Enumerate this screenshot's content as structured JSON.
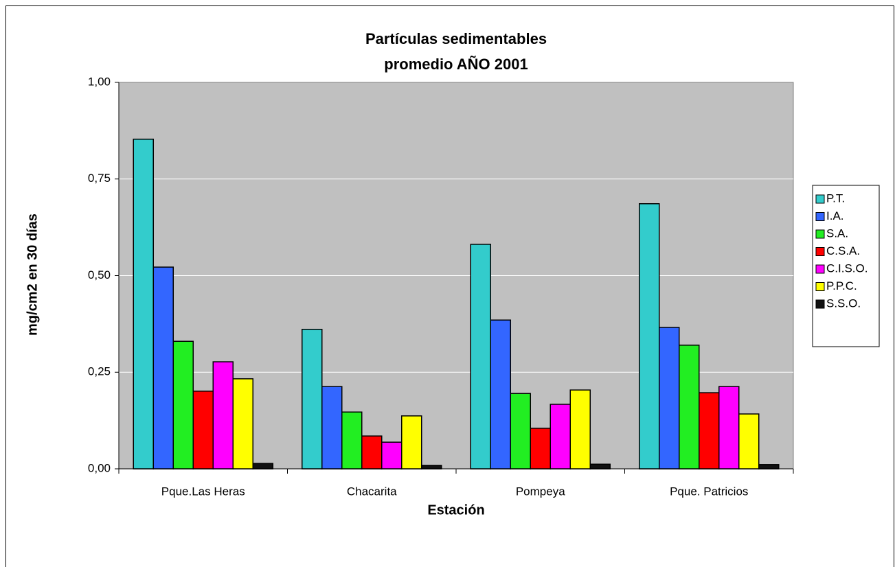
{
  "chart_data": {
    "type": "bar",
    "title": [
      "Partículas sedimentables",
      "promedio  AÑO 2001"
    ],
    "x_label": "Estación",
    "y_label": "mg/cm2 en 30 días",
    "categories": [
      "Pque.Las Heras",
      "Chacarita",
      "Pompeya",
      "Pque. Patricios"
    ],
    "series": [
      {
        "name": "P.T.",
        "color": "#33cccc",
        "values": [
          0.853,
          0.361,
          0.581,
          0.686
        ]
      },
      {
        "name": "I.A.",
        "color": "#3366ff",
        "values": [
          0.522,
          0.213,
          0.385,
          0.366
        ]
      },
      {
        "name": "S.A.",
        "color": "#22ee22",
        "values": [
          0.33,
          0.147,
          0.195,
          0.32
        ]
      },
      {
        "name": "C.S.A.",
        "color": "#ff0000",
        "values": [
          0.201,
          0.085,
          0.105,
          0.197
        ]
      },
      {
        "name": "C.I.S.O.",
        "color": "#ff00ff",
        "values": [
          0.277,
          0.069,
          0.167,
          0.213
        ]
      },
      {
        "name": "P.P.C.",
        "color": "#ffff00",
        "values": [
          0.233,
          0.137,
          0.204,
          0.142
        ]
      },
      {
        "name": "S.S.O.",
        "color": "#111111",
        "values": [
          0.014,
          0.009,
          0.012,
          0.011
        ]
      }
    ],
    "ylim": [
      0,
      1
    ],
    "yticks": [
      {
        "value": 0,
        "label": "0,00"
      },
      {
        "value": 0.25,
        "label": "0,25"
      },
      {
        "value": 0.5,
        "label": "0,50"
      },
      {
        "value": 0.75,
        "label": "0,75"
      },
      {
        "value": 1,
        "label": "1,00"
      }
    ],
    "grid": true,
    "legend": "right"
  }
}
